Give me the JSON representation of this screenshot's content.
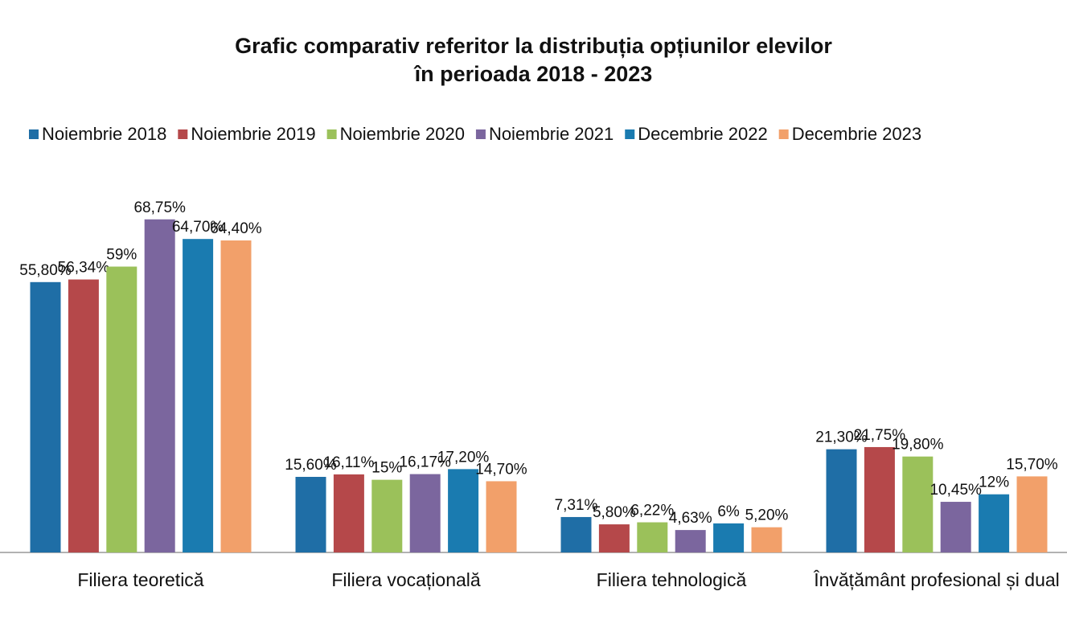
{
  "chart_data": {
    "type": "bar",
    "title": "Grafic comparativ referitor la distribuția opțiunilor elevilor în perioada 2018 - 2023",
    "categories": [
      "Filiera teoretică",
      "Filiera vocațională",
      "Filiera tehnologică",
      "Învățământ profesional și dual"
    ],
    "series": [
      {
        "name": "Noiembrie 2018",
        "color": "#1f6ea6",
        "values": [
          55.8,
          15.6,
          7.31,
          21.3
        ],
        "value_labels": [
          "55,80%",
          "15,60%",
          "7,31%",
          "21,30%"
        ]
      },
      {
        "name": "Noiembrie 2019",
        "color": "#b5484a",
        "values": [
          56.34,
          16.11,
          5.8,
          21.75
        ],
        "value_labels": [
          "56,34%",
          "16,11%",
          "5,80%",
          "21,75%"
        ]
      },
      {
        "name": "Noiembrie 2020",
        "color": "#9bc15a",
        "values": [
          59,
          15,
          6.22,
          19.8
        ],
        "value_labels": [
          "59%",
          "15%",
          "6,22%",
          "19,80%"
        ]
      },
      {
        "name": "Noiembrie 2021",
        "color": "#7b669e",
        "values": [
          68.75,
          16.17,
          4.63,
          10.45
        ],
        "value_labels": [
          "68,75%",
          "16,17%",
          "4,63%",
          "10,45%"
        ]
      },
      {
        "name": "Decembrie 2022",
        "color": "#1a7bb0",
        "values": [
          64.7,
          17.2,
          6,
          12
        ],
        "value_labels": [
          "64,70%",
          "17,20%",
          "6%",
          "12%"
        ]
      },
      {
        "name": "Decembrie 2023",
        "color": "#f2a06a",
        "values": [
          64.4,
          14.7,
          5.2,
          15.7
        ],
        "value_labels": [
          "64,40%",
          "14,70%",
          "5,20%",
          "15,70%"
        ]
      }
    ],
    "ylim": [
      0,
      80
    ]
  }
}
